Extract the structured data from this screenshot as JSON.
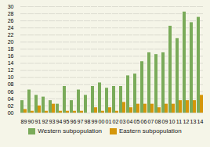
{
  "chart_data": {
    "type": "bar",
    "categories": [
      "89",
      "90",
      "91",
      "92",
      "93",
      "94",
      "95",
      "96",
      "97",
      "98",
      "99",
      "00",
      "01",
      "02",
      "03",
      "04",
      "05",
      "06",
      "07",
      "08",
      "09",
      "10",
      "11",
      "12",
      "13",
      "14"
    ],
    "series": [
      {
        "name": "Western subpopulation",
        "color": "#7aab5a",
        "values": [
          3.5,
          6.5,
          5.0,
          4.5,
          3.5,
          2.5,
          7.5,
          3.5,
          6.5,
          5.0,
          7.5,
          8.5,
          7.0,
          7.5,
          7.5,
          10.5,
          11.0,
          14.5,
          17.0,
          16.5,
          17.0,
          24.5,
          21.0,
          28.5,
          25.5,
          27.0
        ]
      },
      {
        "name": "Eastern subpopulation",
        "color": "#d4960a",
        "values": [
          1.0,
          0.5,
          2.0,
          0.5,
          2.5,
          0.5,
          0.5,
          0.5,
          0.5,
          0.0,
          1.5,
          0.5,
          1.5,
          0.5,
          3.0,
          1.5,
          2.5,
          2.5,
          2.5,
          1.5,
          2.5,
          2.5,
          3.5,
          3.5,
          3.5,
          5.0
        ]
      }
    ],
    "ylim": [
      0,
      30
    ],
    "yticks": [
      {
        "value": 0,
        "label": "00"
      },
      {
        "value": 2,
        "label": "02"
      },
      {
        "value": 4,
        "label": "04"
      },
      {
        "value": 6,
        "label": "06"
      },
      {
        "value": 8,
        "label": "08"
      },
      10,
      12,
      14,
      16,
      18,
      20,
      22,
      24,
      26,
      28,
      30
    ],
    "grid": true,
    "legend": "bottom"
  }
}
